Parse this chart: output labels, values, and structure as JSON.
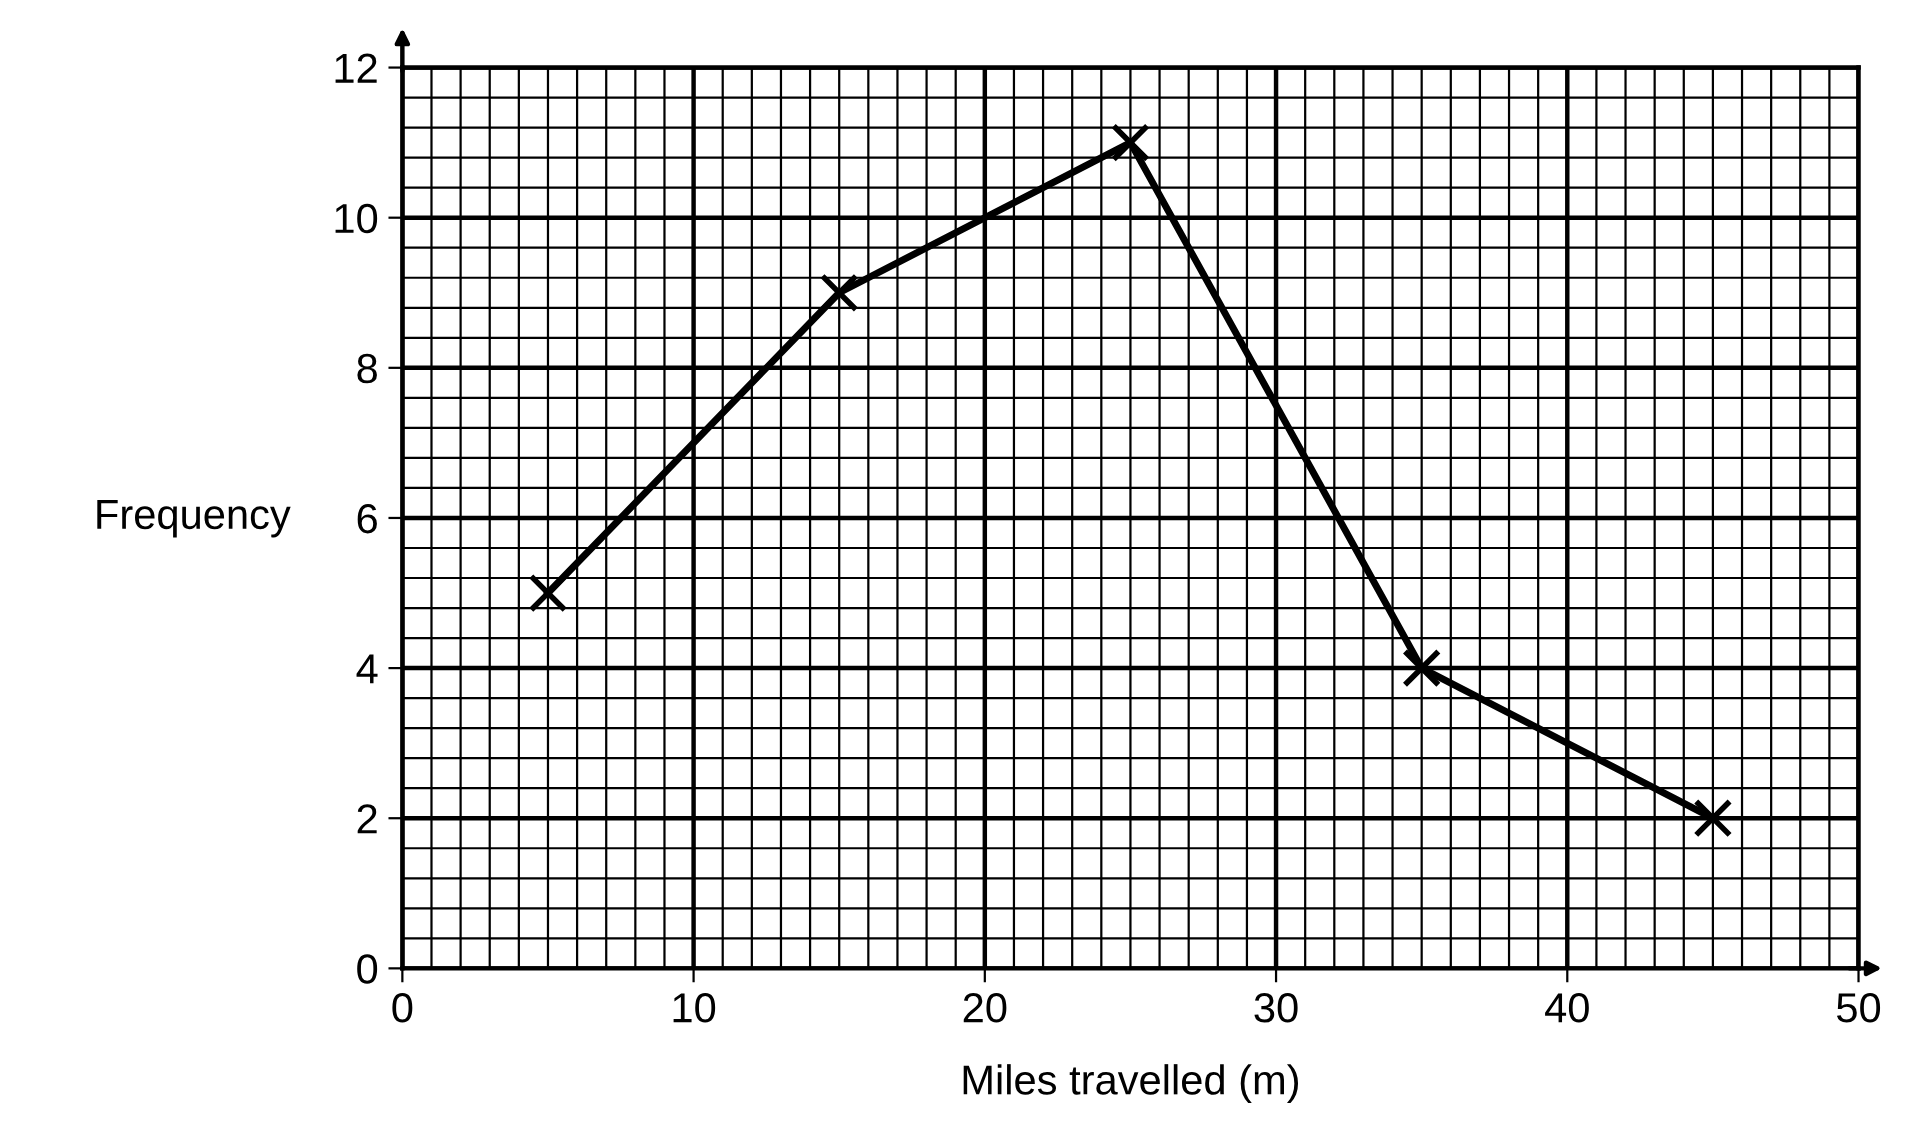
{
  "chart_data": {
    "type": "line",
    "xlabel": "Miles travelled (m)",
    "ylabel": "Frequency",
    "x": [
      5,
      15,
      25,
      35,
      45
    ],
    "series": [
      {
        "color": "#000000",
        "values": [
          5,
          9,
          11,
          4,
          2
        ]
      }
    ],
    "xlim": [
      0,
      50
    ],
    "ylim": [
      0,
      12
    ],
    "xticks": [
      0,
      10,
      20,
      30,
      40,
      50
    ],
    "yticks": [
      0,
      2,
      4,
      6,
      8,
      10,
      12
    ],
    "grid": true,
    "marker": "cross",
    "line_style": "solid"
  }
}
